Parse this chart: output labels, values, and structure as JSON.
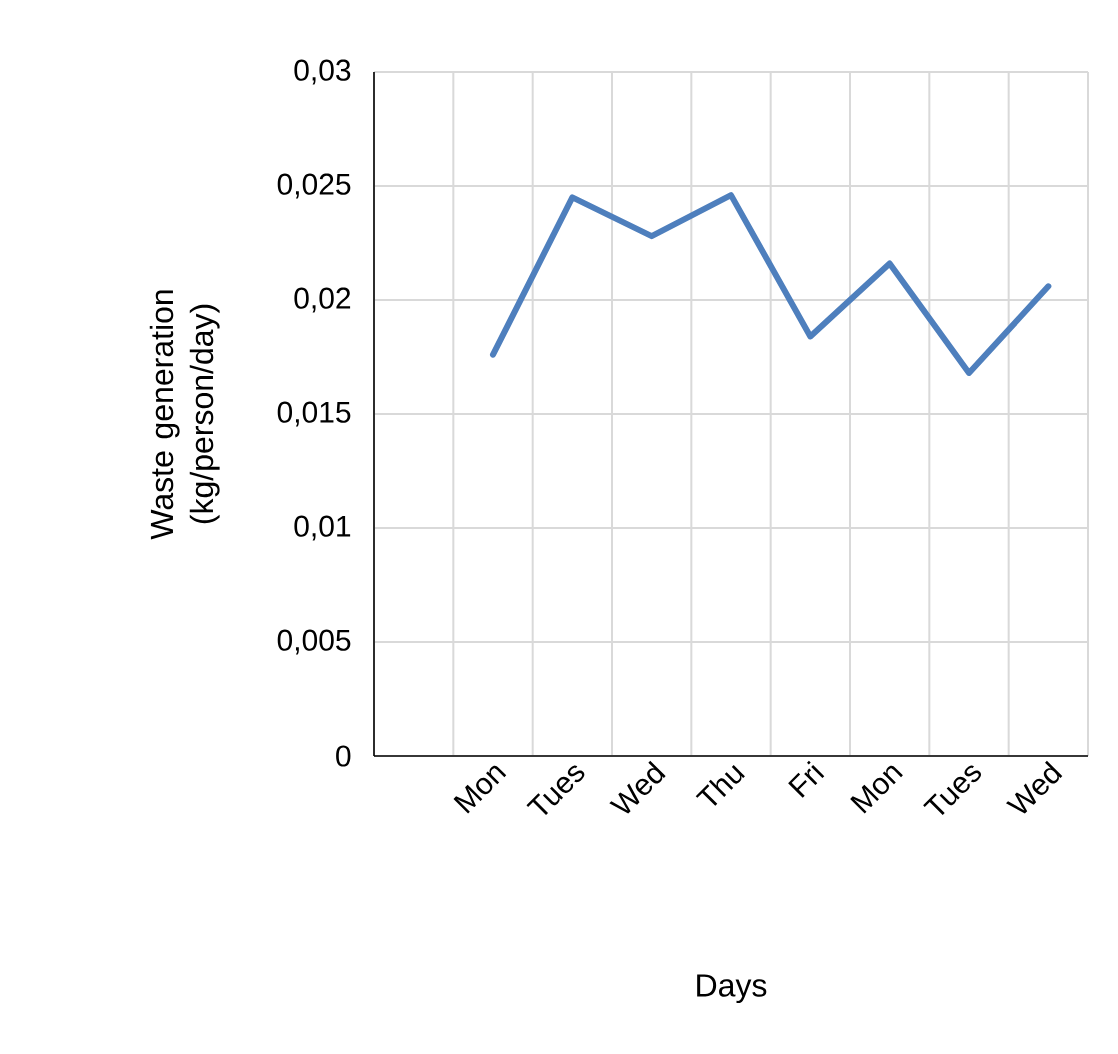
{
  "chart_data": {
    "type": "line",
    "xlabel": "Days",
    "ylabel": "Waste generation (kg/person/day)",
    "categories": [
      null,
      "Mon",
      "Tues",
      "Wed",
      "Thu",
      "Fri",
      "Mon",
      "Tues",
      "Wed"
    ],
    "series": [
      {
        "color": "#4e7fbd",
        "values": [
          null,
          0.0176,
          0.0245,
          0.0228,
          0.0246,
          0.0184,
          0.0216,
          0.0168,
          0.0206
        ]
      }
    ],
    "ylim": [
      0,
      0.03
    ],
    "yticks": [
      {
        "value": 0,
        "label": "0"
      },
      {
        "value": 0.005,
        "label": "0,005"
      },
      {
        "value": 0.01,
        "label": "0,01"
      },
      {
        "value": 0.015,
        "label": "0,015"
      },
      {
        "value": 0.02,
        "label": "0,02"
      },
      {
        "value": 0.025,
        "label": "0,025"
      },
      {
        "value": 0.03,
        "label": "0,03"
      }
    ],
    "grid": true
  }
}
